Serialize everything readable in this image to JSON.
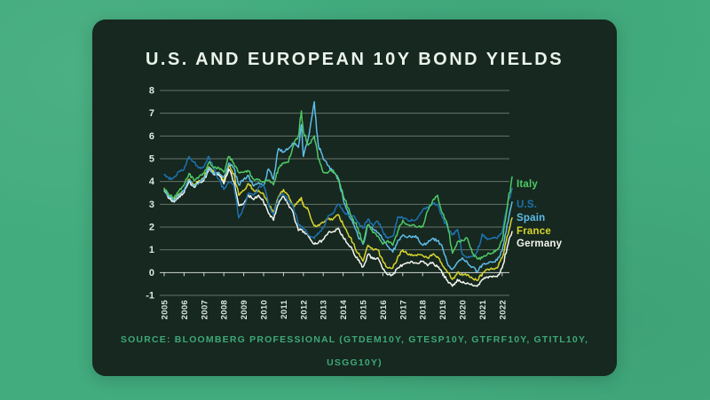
{
  "title": "U.S. AND EUROPEAN 10Y BOND YIELDS",
  "source": {
    "line1": "SOURCE: BLOOMBERG PROFESSIONAL (GTDEM10Y, GTESP10Y, GTFRF10Y, GTITL10Y,",
    "line2": "USGG10Y)"
  },
  "colors": {
    "page_background": "#42ac7e",
    "card_background": "#16281f",
    "title_text": "#eaf2ec",
    "source_text": "#3ea878",
    "grid_line": "rgba(220,233,226,0.40)",
    "zero_axis": "rgba(238,246,241,0.85)",
    "axis_label": "#dde8e2"
  },
  "chart_data": {
    "type": "line",
    "title": "U.S. AND EUROPEAN 10Y BOND YIELDS",
    "xlabel": "",
    "ylabel": "",
    "ylim": [
      -1,
      8
    ],
    "y_ticks": [
      8,
      7,
      6,
      5,
      4,
      3,
      2,
      1,
      0,
      -1
    ],
    "x_tick_labels": [
      "2005",
      "2006",
      "2007",
      "2008",
      "2009",
      "2010",
      "2011",
      "2012",
      "2013",
      "2014",
      "2015",
      "2016",
      "2017",
      "2018",
      "2019",
      "2020",
      "2021",
      "2022"
    ],
    "grid": true,
    "legend_position": "right-outside",
    "x": [
      2005.0,
      2005.25,
      2005.5,
      2005.75,
      2006.0,
      2006.25,
      2006.5,
      2006.75,
      2007.0,
      2007.25,
      2007.5,
      2007.75,
      2008.0,
      2008.25,
      2008.5,
      2008.75,
      2009.0,
      2009.25,
      2009.5,
      2009.75,
      2010.0,
      2010.25,
      2010.5,
      2010.75,
      2011.0,
      2011.25,
      2011.5,
      2011.75,
      2011.9,
      2012.0,
      2012.25,
      2012.55,
      2012.75,
      2013.0,
      2013.25,
      2013.5,
      2013.75,
      2014.0,
      2014.25,
      2014.5,
      2014.75,
      2015.0,
      2015.25,
      2015.5,
      2015.75,
      2016.0,
      2016.25,
      2016.5,
      2016.75,
      2017.0,
      2017.25,
      2017.5,
      2017.75,
      2018.0,
      2018.25,
      2018.5,
      2018.75,
      2019.0,
      2019.25,
      2019.5,
      2019.75,
      2020.0,
      2020.25,
      2020.5,
      2020.75,
      2021.0,
      2021.25,
      2021.5,
      2021.75,
      2022.0,
      2022.25,
      2022.5
    ],
    "series": [
      {
        "name": "Italy",
        "color": "#4fc967",
        "values": [
          3.7,
          3.4,
          3.3,
          3.6,
          3.85,
          4.35,
          4.05,
          4.2,
          4.35,
          4.85,
          4.6,
          4.6,
          4.4,
          5.1,
          4.8,
          4.4,
          4.4,
          4.45,
          4.1,
          4.1,
          4.0,
          4.05,
          3.85,
          4.6,
          4.8,
          4.85,
          5.6,
          6.0,
          7.1,
          6.2,
          5.6,
          6.0,
          5.0,
          4.4,
          4.4,
          4.5,
          4.1,
          3.4,
          2.85,
          2.35,
          1.95,
          1.3,
          2.1,
          1.75,
          1.6,
          1.25,
          1.4,
          1.2,
          1.8,
          2.3,
          2.1,
          2.1,
          2.0,
          2.0,
          2.7,
          3.15,
          3.4,
          2.6,
          2.1,
          0.85,
          1.35,
          1.4,
          1.5,
          0.85,
          0.6,
          0.65,
          0.8,
          0.85,
          1.0,
          1.4,
          2.8,
          4.2
        ]
      },
      {
        "name": "U.S.",
        "color": "#1e72b0",
        "values": [
          4.3,
          4.1,
          4.2,
          4.45,
          4.55,
          5.1,
          4.85,
          4.6,
          4.65,
          5.1,
          4.55,
          4.1,
          3.65,
          4.0,
          3.85,
          2.4,
          2.85,
          3.5,
          3.4,
          3.75,
          3.85,
          3.0,
          2.55,
          3.3,
          3.45,
          3.15,
          2.9,
          2.1,
          2.0,
          1.95,
          1.65,
          1.5,
          1.7,
          1.95,
          2.5,
          2.6,
          3.0,
          2.7,
          2.55,
          2.5,
          2.2,
          1.95,
          2.35,
          2.05,
          2.25,
          1.8,
          1.5,
          1.6,
          2.45,
          2.4,
          2.3,
          2.3,
          2.4,
          2.75,
          2.85,
          3.05,
          3.0,
          2.4,
          2.0,
          1.65,
          1.9,
          0.8,
          0.65,
          0.7,
          0.9,
          1.7,
          1.45,
          1.5,
          1.5,
          1.8,
          2.9,
          3.7
        ]
      },
      {
        "name": "Spain",
        "color": "#5fbce9",
        "values": [
          3.6,
          3.3,
          3.2,
          3.4,
          3.6,
          4.05,
          3.8,
          3.95,
          4.1,
          4.6,
          4.35,
          4.4,
          4.2,
          4.8,
          4.6,
          3.85,
          4.1,
          4.25,
          3.8,
          3.95,
          3.85,
          4.55,
          4.1,
          5.45,
          5.3,
          5.45,
          5.7,
          5.5,
          6.5,
          5.1,
          5.9,
          7.5,
          5.6,
          5.0,
          4.7,
          4.4,
          4.15,
          3.25,
          2.65,
          2.15,
          1.6,
          1.25,
          2.1,
          1.9,
          1.75,
          1.45,
          1.15,
          0.9,
          1.4,
          1.65,
          1.55,
          1.6,
          1.55,
          1.2,
          1.3,
          1.5,
          1.4,
          1.1,
          0.4,
          0.15,
          0.45,
          0.65,
          0.45,
          0.25,
          0.05,
          0.35,
          0.4,
          0.45,
          0.55,
          0.95,
          2.1,
          3.1
        ]
      },
      {
        "name": "France",
        "color": "#d8d42e",
        "values": [
          3.7,
          3.35,
          3.2,
          3.45,
          3.6,
          4.1,
          3.85,
          4.05,
          4.15,
          4.65,
          4.4,
          4.4,
          4.0,
          4.7,
          4.35,
          3.4,
          3.6,
          3.9,
          3.6,
          3.6,
          3.45,
          3.0,
          2.65,
          3.35,
          3.65,
          3.4,
          2.9,
          3.1,
          3.3,
          2.95,
          2.75,
          2.05,
          2.1,
          2.2,
          2.35,
          2.35,
          2.55,
          2.1,
          1.7,
          1.3,
          0.85,
          0.5,
          1.2,
          1.0,
          1.0,
          0.5,
          0.2,
          0.2,
          0.7,
          1.0,
          0.8,
          0.75,
          0.8,
          0.75,
          0.65,
          0.8,
          0.7,
          0.3,
          0.0,
          -0.3,
          0.0,
          -0.1,
          -0.1,
          -0.25,
          -0.35,
          -0.05,
          0.15,
          0.15,
          0.2,
          0.65,
          1.6,
          2.4
        ]
      },
      {
        "name": "Germany",
        "color": "#f4f6f1",
        "values": [
          3.6,
          3.25,
          3.1,
          3.35,
          3.5,
          4.0,
          3.75,
          3.95,
          4.05,
          4.55,
          4.3,
          4.3,
          3.9,
          4.55,
          4.0,
          2.95,
          3.0,
          3.4,
          3.2,
          3.4,
          3.1,
          2.6,
          2.3,
          3.0,
          3.35,
          3.0,
          2.6,
          1.85,
          1.9,
          1.8,
          1.6,
          1.25,
          1.3,
          1.45,
          1.75,
          1.8,
          1.95,
          1.55,
          1.25,
          0.95,
          0.55,
          0.25,
          0.8,
          0.6,
          0.65,
          0.15,
          -0.1,
          -0.1,
          0.2,
          0.35,
          0.45,
          0.45,
          0.4,
          0.5,
          0.3,
          0.45,
          0.25,
          -0.05,
          -0.35,
          -0.6,
          -0.3,
          -0.45,
          -0.45,
          -0.55,
          -0.6,
          -0.3,
          -0.2,
          -0.2,
          -0.18,
          0.2,
          1.1,
          1.8
        ]
      }
    ]
  }
}
